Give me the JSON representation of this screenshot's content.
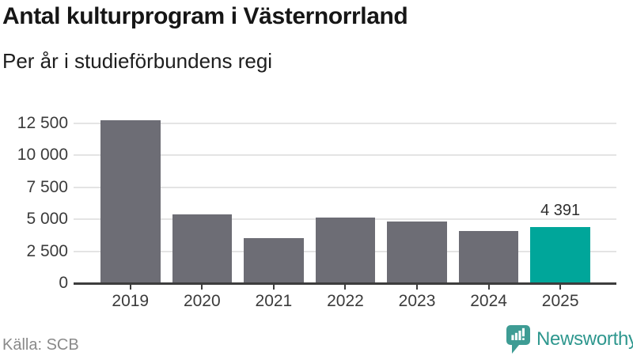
{
  "header": {
    "title": "Antal kulturprogram i Västernorrland",
    "subtitle": "Per år i studieförbundens regi"
  },
  "footer": {
    "source": "Källa: SCB",
    "brand": "Newsworthy",
    "brand_icon": "newsworthy-bar-chart-bubble-icon"
  },
  "colors": {
    "bar": "#6d6d75",
    "highlight": "#00a69a",
    "gridline": "#e4e4e4",
    "axis": "#3d3d3d",
    "axis_label": "#3b3b3b",
    "value_label": "#2f2f2f",
    "source_text": "#8a8a8a",
    "brand_text": "#2e978e",
    "brand_icon": "#3e9c94"
  },
  "chart_data": {
    "type": "bar",
    "title": "Antal kulturprogram i Västernorrland",
    "subtitle": "Per år i studieförbundens regi",
    "categories": [
      "2019",
      "2020",
      "2021",
      "2022",
      "2023",
      "2024",
      "2025"
    ],
    "values": [
      12750,
      5400,
      3500,
      5150,
      4800,
      4050,
      4391
    ],
    "highlight_index": 6,
    "value_labels": {
      "6": "4 391"
    },
    "yticks": [
      0,
      2500,
      5000,
      7500,
      10000,
      12500
    ],
    "ytick_labels": [
      "0",
      "2 500",
      "5 000",
      "7 500",
      "10 000",
      "12 500"
    ],
    "ylim": [
      0,
      13100
    ],
    "xlabel": "",
    "ylabel": "",
    "grid": "horizontal",
    "legend_position": "none"
  }
}
